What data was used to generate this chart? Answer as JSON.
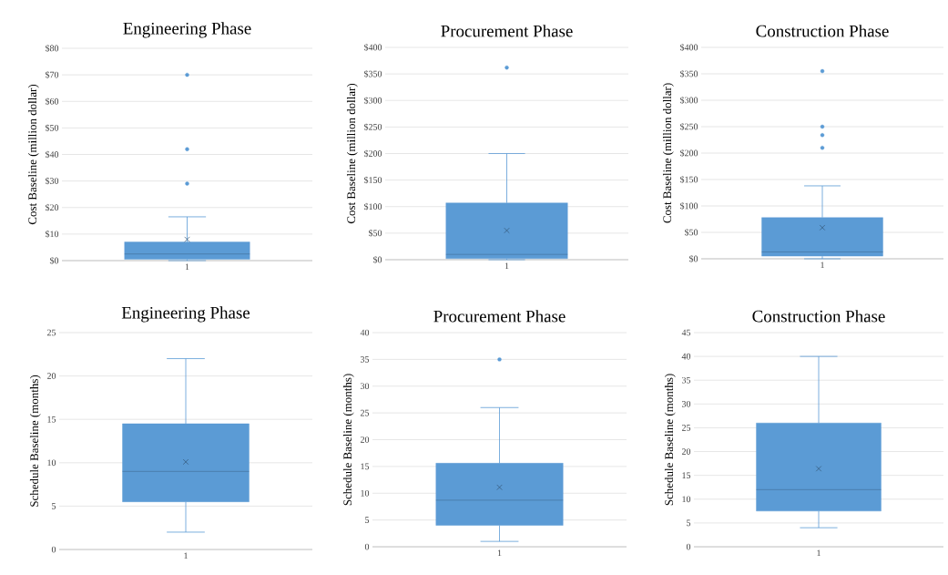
{
  "chart_data": [
    {
      "type": "box",
      "title": "Engineering Phase",
      "ylabel": "Cost Baseline (million dollar)",
      "categories": [
        "1"
      ],
      "color": "#5b9bd5",
      "grid": "y",
      "ylim": [
        0,
        80
      ],
      "yticks": [
        {
          "value": 0,
          "label": "$0"
        },
        {
          "value": 10,
          "label": "$10"
        },
        {
          "value": 20,
          "label": "$20"
        },
        {
          "value": 30,
          "label": "$30"
        },
        {
          "value": 40,
          "label": "$40"
        },
        {
          "value": 50,
          "label": "$50"
        },
        {
          "value": 60,
          "label": "$60"
        },
        {
          "value": 70,
          "label": "$70"
        },
        {
          "value": 80,
          "label": "$80"
        }
      ],
      "boxes": [
        {
          "low": 0,
          "q1": 0.5,
          "median": 2.5,
          "q3": 7,
          "high": 16.5,
          "mean": 8,
          "outliers": [
            29,
            42,
            70
          ]
        }
      ]
    },
    {
      "type": "box",
      "title": "Procurement Phase",
      "ylabel": "Cost Baseline (million dollar)",
      "categories": [
        "1"
      ],
      "color": "#5b9bd5",
      "grid": "y",
      "ylim": [
        0,
        400
      ],
      "yticks": [
        {
          "value": 0,
          "label": "$0"
        },
        {
          "value": 50,
          "label": "$50"
        },
        {
          "value": 100,
          "label": "$100"
        },
        {
          "value": 150,
          "label": "$150"
        },
        {
          "value": 200,
          "label": "$200"
        },
        {
          "value": 250,
          "label": "$250"
        },
        {
          "value": 300,
          "label": "$300"
        },
        {
          "value": 350,
          "label": "$350"
        },
        {
          "value": 400,
          "label": "$400"
        }
      ],
      "boxes": [
        {
          "low": 0,
          "q1": 2,
          "median": 10,
          "q3": 107,
          "high": 200,
          "mean": 55,
          "outliers": [
            362
          ]
        }
      ]
    },
    {
      "type": "box",
      "title": "Construction Phase",
      "ylabel": "Cost Baseline (million dollar)",
      "categories": [
        "1"
      ],
      "color": "#5b9bd5",
      "grid": "y",
      "ylim": [
        0,
        400
      ],
      "yticks": [
        {
          "value": 0,
          "label": "$0"
        },
        {
          "value": 50,
          "label": "$50"
        },
        {
          "value": 100,
          "label": "$100"
        },
        {
          "value": 150,
          "label": "$150"
        },
        {
          "value": 200,
          "label": "$200"
        },
        {
          "value": 250,
          "label": "$250"
        },
        {
          "value": 300,
          "label": "$300"
        },
        {
          "value": 350,
          "label": "$350"
        },
        {
          "value": 400,
          "label": "$400"
        }
      ],
      "boxes": [
        {
          "low": 0,
          "q1": 5,
          "median": 13,
          "q3": 78,
          "high": 138,
          "mean": 59,
          "outliers": [
            210,
            234,
            250,
            355
          ]
        }
      ]
    },
    {
      "type": "box",
      "title": "Engineering Phase",
      "ylabel": "Schedule Baseline (months)",
      "categories": [
        "1"
      ],
      "color": "#5b9bd5",
      "grid": "y",
      "ylim": [
        0,
        25
      ],
      "yticks": [
        0,
        5,
        10,
        15,
        20,
        25
      ],
      "boxes": [
        {
          "low": 2,
          "q1": 5.5,
          "median": 9,
          "q3": 14.5,
          "high": 22,
          "mean": 10.1
        }
      ]
    },
    {
      "type": "box",
      "title": "Procurement Phase",
      "ylabel": "Schedule Baseline (months)",
      "categories": [
        "1"
      ],
      "color": "#5b9bd5",
      "grid": "y",
      "ylim": [
        0,
        40
      ],
      "yticks": [
        0,
        5,
        10,
        15,
        20,
        25,
        30,
        35,
        40
      ],
      "boxes": [
        {
          "low": 1,
          "q1": 4,
          "median": 8.7,
          "q3": 15.6,
          "high": 26,
          "mean": 11.1,
          "outliers": [
            35
          ]
        }
      ]
    },
    {
      "type": "box",
      "title": "Construction Phase",
      "ylabel": "Schedule Baseline (months)",
      "categories": [
        "1"
      ],
      "color": "#5b9bd5",
      "grid": "y",
      "ylim": [
        0,
        45
      ],
      "yticks": [
        0,
        5,
        10,
        15,
        20,
        25,
        30,
        35,
        40,
        45
      ],
      "boxes": [
        {
          "low": 4,
          "q1": 7.5,
          "median": 12,
          "q3": 26,
          "high": 40,
          "mean": 16.4
        }
      ]
    }
  ]
}
